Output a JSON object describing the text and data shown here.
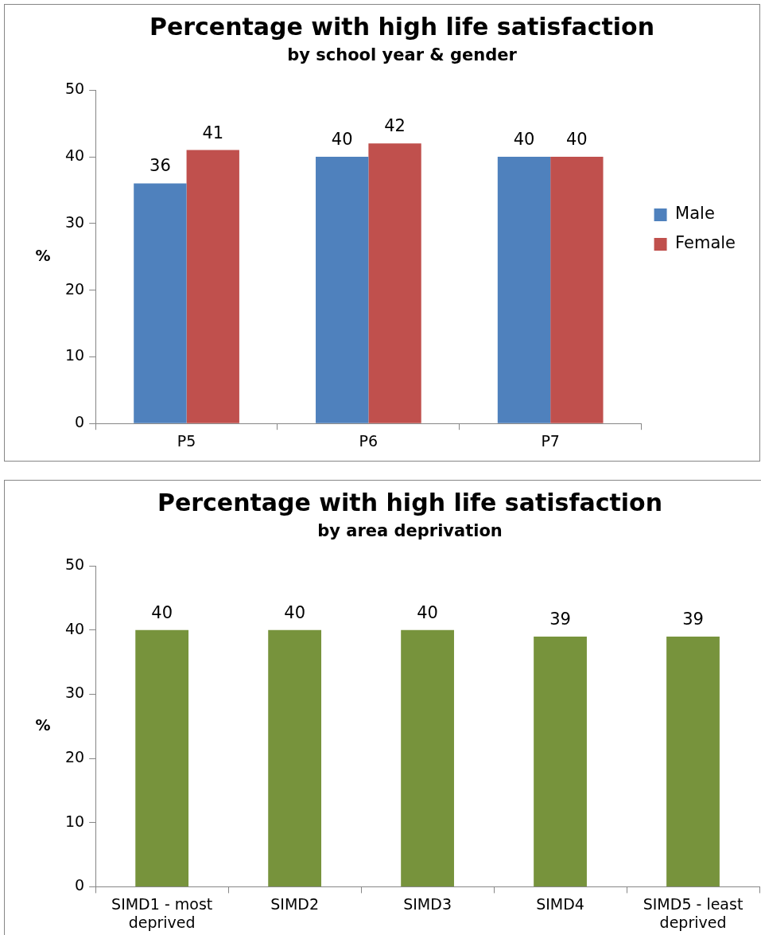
{
  "chart_data": [
    {
      "type": "bar",
      "title": "Percentage with high life satisfaction",
      "subtitle": "by school year & gender",
      "ylabel": "%",
      "categories": [
        "P5",
        "P6",
        "P7"
      ],
      "series": [
        {
          "name": "Male",
          "color": "#4f81bd",
          "values": [
            36,
            40,
            40
          ]
        },
        {
          "name": "Female",
          "color": "#c0504d",
          "values": [
            41,
            42,
            40
          ]
        }
      ],
      "ylim": [
        0,
        50
      ],
      "yticks": [
        0,
        10,
        20,
        30,
        40,
        50
      ],
      "grid": false,
      "legend": "right",
      "data_labels": true
    },
    {
      "type": "bar",
      "title": "Percentage with high life satisfaction",
      "subtitle": "by area deprivation",
      "ylabel": "%",
      "categories": [
        "SIMD1 - most deprived",
        "SIMD2",
        "SIMD3",
        "SIMD4",
        "SIMD5 - least deprived"
      ],
      "series": [
        {
          "color": "#77933c",
          "values": [
            40,
            40,
            40,
            39,
            39
          ]
        }
      ],
      "ylim": [
        0,
        50
      ],
      "yticks": [
        0,
        10,
        20,
        30,
        40,
        50
      ],
      "grid": false,
      "legend": false,
      "data_labels": true
    }
  ]
}
